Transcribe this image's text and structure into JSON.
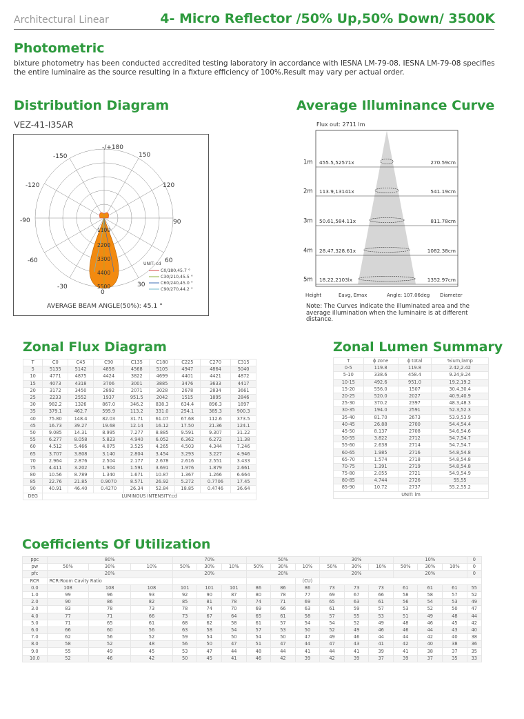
{
  "header": {
    "brand": "Architectural Linear",
    "title": "4- Micro Reflector /50% Up,50% Down/ 3500K"
  },
  "photometric": {
    "heading": "Photometric",
    "text": "bixture photometry has been conducted accredited testing laboratory in accordance with IESNA LM-79-08. IESNA LM-79-08 specifies the entire luminaire as the source resulting in a fixture efficiency of 100%.Result may vary per actual order."
  },
  "distribution": {
    "heading": "Distribution Diagram",
    "model": "VEZ-41-I35AR",
    "angles_top": [
      "-/+180",
      "-150",
      "150"
    ],
    "angles_side": [
      "-120",
      "120",
      "-90",
      "90",
      "-60",
      "60",
      "-30",
      "30",
      "0"
    ],
    "radial": [
      "1100",
      "2200",
      "3300",
      "4400",
      "5500"
    ],
    "unit": "UNIT: cd",
    "legend": [
      {
        "label": "C0/180,45.7 °",
        "color": "#d64545"
      },
      {
        "label": "C30/210,45.5 °",
        "color": "#8fb23a"
      },
      {
        "label": "C60/240,45.0 °",
        "color": "#3f6fb5"
      },
      {
        "label": "C90/270,44.2 °",
        "color": "#6fb7c9"
      }
    ],
    "beam_angle": "AVERAGE BEAM ANGLE(50%): 45.1 °"
  },
  "illuminance": {
    "heading": "Average Illuminance Curve",
    "flux": "Flux out: 2711 lm",
    "rows": [
      {
        "h": "1m",
        "e": "455.5,52571x",
        "d": "270.59cm"
      },
      {
        "h": "2m",
        "e": "113.9,13141x",
        "d": "541.19cm"
      },
      {
        "h": "3m",
        "e": "50.61,584.11x",
        "d": "811.78cm"
      },
      {
        "h": "4m",
        "e": "28.47,328.61x",
        "d": "1082.38cm"
      },
      {
        "h": "5m",
        "e": "18.22,2103lx",
        "d": "1352.97cm"
      }
    ],
    "footer": {
      "height": "Height",
      "eavg": "Eavg, Emax",
      "angle": "Angle: 107.06deg",
      "diameter": "Diameter"
    },
    "note": "Note: The Curves indicate the illuminated area and the average illumination when the luminaire is at different distance."
  },
  "zonal_flux": {
    "heading": "Zonal Flux Diagram",
    "columns": [
      "T",
      "C0",
      "C45",
      "C90",
      "C135",
      "C180",
      "C225",
      "C270",
      "C315"
    ],
    "rows": [
      [
        "5",
        "5135",
        "5142",
        "4858",
        "4568",
        "5105",
        "4947",
        "4864",
        "5040"
      ],
      [
        "10",
        "4771",
        "4875",
        "4424",
        "3822",
        "4699",
        "4401",
        "4421",
        "4872"
      ],
      [
        "15",
        "4073",
        "4318",
        "3706",
        "3001",
        "3885",
        "3476",
        "3633",
        "4417"
      ],
      [
        "20",
        "3172",
        "3450",
        "2892",
        "2071",
        "3028",
        "2678",
        "2834",
        "3661"
      ],
      [
        "25",
        "2233",
        "2552",
        "1937",
        "951.5",
        "2042",
        "1515",
        "1895",
        "2846"
      ],
      [
        "30",
        "982.2",
        "1326",
        "867.0",
        "346.2",
        "838.3",
        "634.4",
        "896.3",
        "1897"
      ],
      [
        "35",
        "379.1",
        "462.7",
        "595.9",
        "113.2",
        "331.0",
        "254.1",
        "385.3",
        "900.3"
      ],
      [
        "40",
        "75.80",
        "148.4",
        "82.03",
        "31.71",
        "61.07",
        "67.68",
        "112.6",
        "373.5"
      ],
      [
        "45",
        "16.73",
        "39.27",
        "19.68",
        "12.14",
        "16.12",
        "17.50",
        "21.36",
        "124.1"
      ],
      [
        "50",
        "9.085",
        "14.31",
        "8.995",
        "7.277",
        "8.885",
        "9.591",
        "9.307",
        "31.22"
      ],
      [
        "55",
        "6.277",
        "8.058",
        "5.823",
        "4.940",
        "6.052",
        "6.362",
        "6.272",
        "11.38"
      ],
      [
        "60",
        "4.512",
        "5.466",
        "4.075",
        "3.525",
        "4.265",
        "4.503",
        "4.344",
        "7.246"
      ],
      [
        "65",
        "3.707",
        "3.808",
        "3.140",
        "2.804",
        "3.454",
        "3.293",
        "3.227",
        "4.946"
      ],
      [
        "70",
        "2.964",
        "2.876",
        "2.504",
        "2.177",
        "2.678",
        "2.616",
        "2.551",
        "3.433"
      ],
      [
        "75",
        "4.411",
        "3.202",
        "1.904",
        "1.591",
        "3.691",
        "1.976",
        "1.879",
        "2.661"
      ],
      [
        "80",
        "10.56",
        "8.789",
        "1.340",
        "1.671",
        "10.87",
        "1.367",
        "1.266",
        "6.664"
      ],
      [
        "85",
        "22.76",
        "21.85",
        "0.9070",
        "8.571",
        "26.92",
        "5.272",
        "0.7706",
        "17.45"
      ],
      [
        "90",
        "40.91",
        "46.40",
        "0.4270",
        "26.34",
        "52.84",
        "18.85",
        "0.4746",
        "36.64"
      ]
    ],
    "footer_left": "DEG",
    "footer": "LUMINOUS INTENSITY:cd"
  },
  "zonal_lumen": {
    "heading": "Zonal Lumen Summary",
    "columns": [
      "T",
      "ϕ zone",
      "ϕ total",
      "%lum,lamp"
    ],
    "rows": [
      [
        "0-5",
        "119.8",
        "119.8",
        "2.42,2.42"
      ],
      [
        "5-10",
        "338.6",
        "458.4",
        "9.24,9.24"
      ],
      [
        "10-15",
        "492.6",
        "951.0",
        "19.2,19.2"
      ],
      [
        "15-20",
        "556.0",
        "1507",
        "30.4,30.4"
      ],
      [
        "20-25",
        "520.0",
        "2027",
        "40.9,40.9"
      ],
      [
        "25-30",
        "370.2",
        "2397",
        "48.3,48.3"
      ],
      [
        "30-35",
        "194.0",
        "2591",
        "52.3,52.3"
      ],
      [
        "35-40",
        "81.70",
        "2673",
        "53.9,53.9"
      ],
      [
        "40-45",
        "26.88",
        "2700",
        "54.4,54.4"
      ],
      [
        "45-50",
        "8.137",
        "2708",
        "54.6,54.6"
      ],
      [
        "50-55",
        "3.822",
        "2712",
        "54.7,54.7"
      ],
      [
        "55-60",
        "2.638",
        "2714",
        "54.7,54.7"
      ],
      [
        "60-65",
        "1.985",
        "2716",
        "54.8,54.8"
      ],
      [
        "65-70",
        "1.574",
        "2718",
        "54.8,54.8"
      ],
      [
        "70-75",
        "1.391",
        "2719",
        "54.8,54.8"
      ],
      [
        "75-80",
        "2.055",
        "2721",
        "54.9,54.9"
      ],
      [
        "80-85",
        "4.744",
        "2726",
        "55,55"
      ],
      [
        "85-90",
        "10.72",
        "2737",
        "55.2,55.2"
      ]
    ],
    "footer": "UNIT: lm"
  },
  "cu": {
    "heading": "Coefficients Of Utilization",
    "ppc": [
      "ppc",
      "80%",
      "70%",
      "50%",
      "30%",
      "10%",
      "0"
    ],
    "pw": [
      "pw",
      "50%",
      "30%",
      "10%",
      "50%",
      "30%",
      "10%",
      "50%",
      "30%",
      "10%",
      "50%",
      "30%",
      "10%",
      "50%",
      "30%",
      "10%",
      "0"
    ],
    "pfc": [
      "pfc",
      "20%",
      "20%",
      "20%",
      "20%",
      "20%",
      "0"
    ],
    "rcr_label": "RCR",
    "rcr_title": "RCR:Room Cavity Ratio",
    "cu_label": "(CU)",
    "rows": [
      [
        "0.0",
        "108",
        "108",
        "108",
        "101",
        "101",
        "101",
        "86",
        "86",
        "86",
        "73",
        "73",
        "73",
        "61",
        "61",
        "61",
        "55"
      ],
      [
        "1.0",
        "99",
        "96",
        "93",
        "92",
        "90",
        "87",
        "80",
        "78",
        "77",
        "69",
        "67",
        "66",
        "58",
        "58",
        "57",
        "52"
      ],
      [
        "2.0",
        "90",
        "86",
        "82",
        "85",
        "81",
        "78",
        "74",
        "71",
        "69",
        "65",
        "63",
        "61",
        "56",
        "54",
        "53",
        "49"
      ],
      [
        "3.0",
        "83",
        "78",
        "73",
        "78",
        "74",
        "70",
        "69",
        "66",
        "63",
        "61",
        "59",
        "57",
        "53",
        "52",
        "50",
        "47"
      ],
      [
        "4.0",
        "77",
        "71",
        "66",
        "73",
        "67",
        "64",
        "65",
        "61",
        "58",
        "57",
        "55",
        "53",
        "51",
        "49",
        "48",
        "44"
      ],
      [
        "5.0",
        "71",
        "65",
        "61",
        "68",
        "62",
        "58",
        "61",
        "57",
        "54",
        "54",
        "52",
        "49",
        "48",
        "46",
        "45",
        "42"
      ],
      [
        "6.0",
        "66",
        "60",
        "56",
        "63",
        "58",
        "54",
        "57",
        "53",
        "50",
        "52",
        "49",
        "46",
        "46",
        "44",
        "43",
        "40"
      ],
      [
        "7.0",
        "62",
        "56",
        "52",
        "59",
        "54",
        "50",
        "54",
        "50",
        "47",
        "49",
        "46",
        "44",
        "44",
        "42",
        "40",
        "38"
      ],
      [
        "8.0",
        "58",
        "52",
        "48",
        "56",
        "50",
        "47",
        "51",
        "47",
        "44",
        "47",
        "43",
        "41",
        "42",
        "40",
        "38",
        "36"
      ],
      [
        "9.0",
        "55",
        "49",
        "45",
        "53",
        "47",
        "44",
        "48",
        "44",
        "41",
        "44",
        "41",
        "39",
        "41",
        "38",
        "37",
        "35"
      ],
      [
        "10.0",
        "52",
        "46",
        "42",
        "50",
        "45",
        "41",
        "46",
        "42",
        "39",
        "42",
        "39",
        "37",
        "39",
        "37",
        "35",
        "33"
      ]
    ]
  }
}
